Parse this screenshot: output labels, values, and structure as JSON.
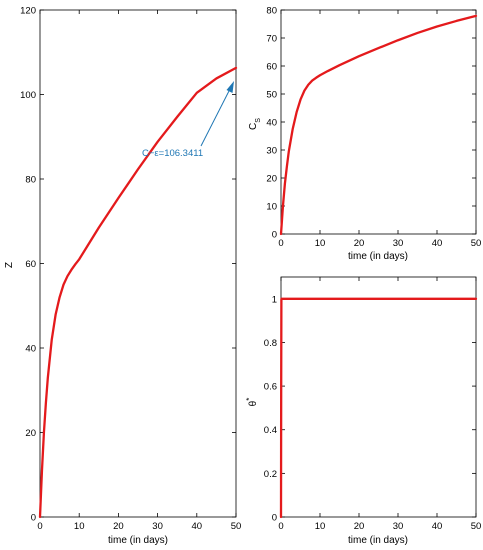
{
  "chart_data": [
    {
      "id": "z",
      "type": "line",
      "xlabel": "time (in days)",
      "ylabel": "Z",
      "xlim": [
        0,
        50
      ],
      "ylim": [
        0,
        120
      ],
      "xticks": [
        0,
        10,
        20,
        30,
        40,
        50
      ],
      "yticks": [
        0,
        20,
        40,
        60,
        80,
        100,
        120
      ],
      "color": "#e41a1c",
      "series": [
        {
          "x": [
            0,
            0.5,
            1,
            1.5,
            2,
            3,
            4,
            5,
            6,
            7,
            8,
            9,
            10,
            12,
            15,
            20,
            25,
            30,
            35,
            40,
            45,
            50
          ],
          "y": [
            0,
            11,
            20,
            27,
            33,
            42,
            48,
            52,
            55,
            57,
            58.5,
            59.8,
            61,
            64,
            68.5,
            75.5,
            82.3,
            88.8,
            94.7,
            100.4,
            103.8,
            106.3
          ]
        }
      ],
      "annotation": {
        "text": "C−ε=106.3411",
        "x": 50,
        "y": 106.3411
      }
    },
    {
      "id": "cs",
      "type": "line",
      "xlabel": "time (in days)",
      "ylabel": "C",
      "ylabel_sub": "S",
      "xlim": [
        0,
        50
      ],
      "ylim": [
        0,
        80
      ],
      "xticks": [
        0,
        10,
        20,
        30,
        40,
        50
      ],
      "yticks": [
        0,
        10,
        20,
        30,
        40,
        50,
        60,
        70,
        80
      ],
      "color": "#e41a1c",
      "series": [
        {
          "x": [
            0,
            0.5,
            1,
            1.5,
            2,
            3,
            4,
            5,
            6,
            7,
            8,
            9,
            10,
            12,
            15,
            20,
            25,
            30,
            35,
            40,
            45,
            50
          ],
          "y": [
            0,
            10,
            18,
            24,
            29.5,
            37.5,
            43.5,
            48,
            51.2,
            53.3,
            54.8,
            55.8,
            56.7,
            58.2,
            60.3,
            63.5,
            66.4,
            69.2,
            71.8,
            74.1,
            76.1,
            77.9
          ]
        }
      ]
    },
    {
      "id": "theta",
      "type": "line",
      "xlabel": "time (in days)",
      "ylabel": "θ",
      "ylabel_sup": "*",
      "xlim": [
        0,
        50
      ],
      "ylim": [
        0,
        1.1
      ],
      "xticks": [
        0,
        10,
        20,
        30,
        40,
        50
      ],
      "yticks": [
        0,
        0.2,
        0.4,
        0.6,
        0.8,
        1
      ],
      "color": "#e41a1c",
      "series": [
        {
          "x": [
            0,
            0.05,
            0.1,
            50
          ],
          "y": [
            0,
            0.6,
            1,
            1
          ]
        }
      ]
    }
  ]
}
